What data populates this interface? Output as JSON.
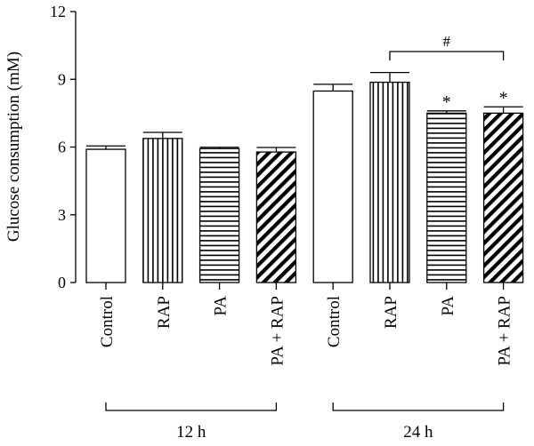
{
  "chart_data": {
    "type": "bar",
    "ylabel": "Glucose consumption (mM)",
    "ylim": [
      0,
      12
    ],
    "yticks": [
      0,
      3,
      6,
      9,
      12
    ],
    "grid": false,
    "bars": [
      {
        "label": "Control",
        "value": 5.9,
        "error": 0.15,
        "pattern": "none"
      },
      {
        "label": "RAP",
        "value": 6.38,
        "error": 0.27,
        "pattern": "vertical"
      },
      {
        "label": "PA",
        "value": 5.93,
        "error": 0.06,
        "pattern": "horizontal"
      },
      {
        "label": "PA + RAP",
        "value": 5.78,
        "error": 0.2,
        "pattern": "diagonal"
      },
      {
        "label": "Control",
        "value": 8.48,
        "error": 0.3,
        "pattern": "none"
      },
      {
        "label": "RAP",
        "value": 8.87,
        "error": 0.43,
        "pattern": "vertical"
      },
      {
        "label": "PA",
        "value": 7.5,
        "error": 0.1,
        "pattern": "horizontal"
      },
      {
        "label": "PA + RAP",
        "value": 7.5,
        "error": 0.28,
        "pattern": "diagonal"
      }
    ],
    "groups": [
      {
        "label": "12 h",
        "bar_indices": [
          0,
          1,
          2,
          3
        ]
      },
      {
        "label": "24 h",
        "bar_indices": [
          4,
          5,
          6,
          7
        ]
      }
    ],
    "annotations": [
      {
        "type": "significance",
        "symbol": "*",
        "bar_index": 6
      },
      {
        "type": "significance",
        "symbol": "*",
        "bar_index": 7
      },
      {
        "type": "bracket",
        "symbol": "#",
        "from_bar": 5,
        "to_bar": 7
      }
    ]
  }
}
